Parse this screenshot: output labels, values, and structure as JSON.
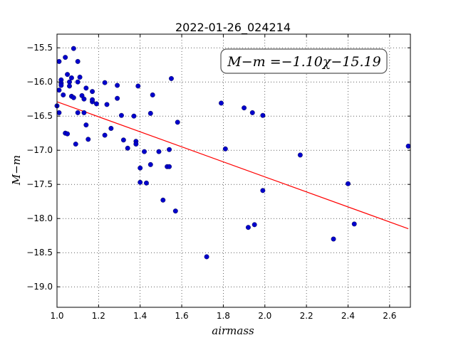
{
  "chart_data": {
    "type": "scatter",
    "title": "2022-01-26_024214",
    "xlabel": "airmass",
    "ylabel": "M−m",
    "xlim": [
      1.0,
      2.7
    ],
    "ylim": [
      -19.3,
      -15.3
    ],
    "y_inverted": true,
    "grid": true,
    "grid_style": "dotted",
    "x_ticks": [
      1.0,
      1.2,
      1.4,
      1.6,
      1.8,
      2.0,
      2.2,
      2.4,
      2.6
    ],
    "x_tick_labels": [
      "1.0",
      "1.2",
      "1.4",
      "1.6",
      "1.8",
      "2.0",
      "2.2",
      "2.4",
      "2.6"
    ],
    "y_ticks": [
      -15.5,
      -16.0,
      -16.5,
      -17.0,
      -17.5,
      -18.0,
      -18.5,
      -19.0
    ],
    "y_tick_labels": [
      "−15.5",
      "−16.0",
      "−16.5",
      "−17.0",
      "−17.5",
      "−18.0",
      "−18.5",
      "−19.0"
    ],
    "annotation": "M−m =−1.10χ−15.19",
    "annotation_position": "top-right",
    "point_color": "#0000cc",
    "fit_color": "#ff0000",
    "fit": {
      "slope": -1.1,
      "intercept": -15.19,
      "x_range": [
        1.0,
        2.69
      ]
    },
    "points": [
      {
        "x": 1.0,
        "y": -16.35
      },
      {
        "x": 1.01,
        "y": -16.45
      },
      {
        "x": 1.01,
        "y": -16.12
      },
      {
        "x": 1.01,
        "y": -15.7
      },
      {
        "x": 1.02,
        "y": -15.97
      },
      {
        "x": 1.02,
        "y": -16.02
      },
      {
        "x": 1.02,
        "y": -16.05
      },
      {
        "x": 1.03,
        "y": -16.19
      },
      {
        "x": 1.04,
        "y": -15.64
      },
      {
        "x": 1.04,
        "y": -16.75
      },
      {
        "x": 1.05,
        "y": -15.89
      },
      {
        "x": 1.05,
        "y": -16.76
      },
      {
        "x": 1.06,
        "y": -16.0
      },
      {
        "x": 1.06,
        "y": -16.06
      },
      {
        "x": 1.07,
        "y": -15.94
      },
      {
        "x": 1.07,
        "y": -16.21
      },
      {
        "x": 1.08,
        "y": -16.23
      },
      {
        "x": 1.08,
        "y": -15.51
      },
      {
        "x": 1.09,
        "y": -16.91
      },
      {
        "x": 1.1,
        "y": -15.7
      },
      {
        "x": 1.1,
        "y": -16.45
      },
      {
        "x": 1.1,
        "y": -16.0
      },
      {
        "x": 1.11,
        "y": -15.93
      },
      {
        "x": 1.12,
        "y": -16.2
      },
      {
        "x": 1.13,
        "y": -16.25
      },
      {
        "x": 1.13,
        "y": -16.45
      },
      {
        "x": 1.14,
        "y": -16.09
      },
      {
        "x": 1.14,
        "y": -16.63
      },
      {
        "x": 1.15,
        "y": -16.84
      },
      {
        "x": 1.17,
        "y": -16.29
      },
      {
        "x": 1.17,
        "y": -16.26
      },
      {
        "x": 1.17,
        "y": -16.14
      },
      {
        "x": 1.19,
        "y": -16.32
      },
      {
        "x": 1.23,
        "y": -16.01
      },
      {
        "x": 1.23,
        "y": -16.78
      },
      {
        "x": 1.24,
        "y": -16.33
      },
      {
        "x": 1.26,
        "y": -16.68
      },
      {
        "x": 1.29,
        "y": -16.05
      },
      {
        "x": 1.29,
        "y": -16.24
      },
      {
        "x": 1.31,
        "y": -16.49
      },
      {
        "x": 1.32,
        "y": -16.85
      },
      {
        "x": 1.34,
        "y": -16.97
      },
      {
        "x": 1.37,
        "y": -16.5
      },
      {
        "x": 1.38,
        "y": -16.87
      },
      {
        "x": 1.38,
        "y": -16.91
      },
      {
        "x": 1.39,
        "y": -16.06
      },
      {
        "x": 1.4,
        "y": -17.47
      },
      {
        "x": 1.4,
        "y": -17.26
      },
      {
        "x": 1.42,
        "y": -17.02
      },
      {
        "x": 1.43,
        "y": -17.48
      },
      {
        "x": 1.45,
        "y": -17.21
      },
      {
        "x": 1.45,
        "y": -16.46
      },
      {
        "x": 1.46,
        "y": -16.19
      },
      {
        "x": 1.49,
        "y": -17.02
      },
      {
        "x": 1.51,
        "y": -17.73
      },
      {
        "x": 1.53,
        "y": -17.24
      },
      {
        "x": 1.54,
        "y": -17.24
      },
      {
        "x": 1.54,
        "y": -16.99
      },
      {
        "x": 1.55,
        "y": -15.95
      },
      {
        "x": 1.57,
        "y": -17.89
      },
      {
        "x": 1.58,
        "y": -16.59
      },
      {
        "x": 1.72,
        "y": -18.56
      },
      {
        "x": 1.79,
        "y": -16.31
      },
      {
        "x": 1.81,
        "y": -16.98
      },
      {
        "x": 1.9,
        "y": -16.38
      },
      {
        "x": 1.92,
        "y": -18.13
      },
      {
        "x": 1.94,
        "y": -16.45
      },
      {
        "x": 1.95,
        "y": -18.09
      },
      {
        "x": 1.99,
        "y": -16.49
      },
      {
        "x": 1.99,
        "y": -17.59
      },
      {
        "x": 2.17,
        "y": -17.07
      },
      {
        "x": 2.33,
        "y": -18.3
      },
      {
        "x": 2.4,
        "y": -17.49
      },
      {
        "x": 2.43,
        "y": -18.08
      },
      {
        "x": 2.69,
        "y": -16.94
      }
    ]
  }
}
